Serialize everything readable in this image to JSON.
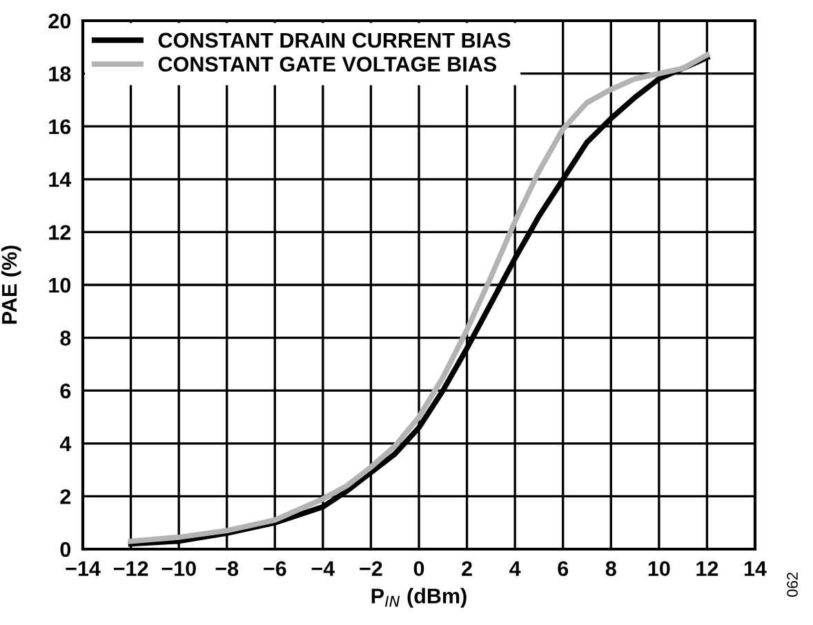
{
  "chart_data": {
    "type": "line",
    "xlabel": "P$_{IN}$ (dBm)",
    "ylabel": "PAE (%)",
    "x": [
      -12,
      -10,
      -8,
      -6,
      -4,
      -3,
      -2,
      -1,
      0,
      1,
      2,
      3,
      4,
      5,
      6,
      7,
      8,
      9,
      10,
      11,
      12
    ],
    "series": [
      {
        "name": "CONSTANT DRAIN CURRENT BIAS",
        "color": "#000000",
        "values": [
          0.2,
          0.3,
          0.6,
          1.0,
          1.6,
          2.2,
          2.9,
          3.6,
          4.6,
          6.0,
          7.6,
          9.3,
          11.0,
          12.6,
          14.0,
          15.4,
          16.3,
          17.1,
          17.8,
          18.2,
          18.6
        ]
      },
      {
        "name": "CONSTANT GATE VOLTAGE BIAS",
        "color": "#b3b3b3",
        "values": [
          0.3,
          0.45,
          0.7,
          1.1,
          1.9,
          2.4,
          3.1,
          3.9,
          5.0,
          6.5,
          8.3,
          10.3,
          12.4,
          14.3,
          15.9,
          16.9,
          17.4,
          17.8,
          18.0,
          18.2,
          18.7
        ]
      }
    ],
    "xlim": [
      -14,
      14
    ],
    "xticks": [
      {
        "value": -14,
        "label": "−14"
      },
      {
        "value": -12,
        "label": "−12"
      },
      {
        "value": -10,
        "label": "−10"
      },
      {
        "value": -8,
        "label": "−8"
      },
      {
        "value": -6,
        "label": "−6"
      },
      {
        "value": -4,
        "label": "−4"
      },
      {
        "value": -2,
        "label": "−2"
      },
      0,
      2,
      4,
      6,
      8,
      10,
      12,
      14
    ],
    "ylim": [
      0,
      20
    ],
    "yticks": [
      0,
      2,
      4,
      6,
      8,
      10,
      12,
      14,
      16,
      18,
      20
    ],
    "grid": true,
    "legend": "top left",
    "marker": "none",
    "line_style": "solid",
    "annotations": [
      "062"
    ]
  }
}
